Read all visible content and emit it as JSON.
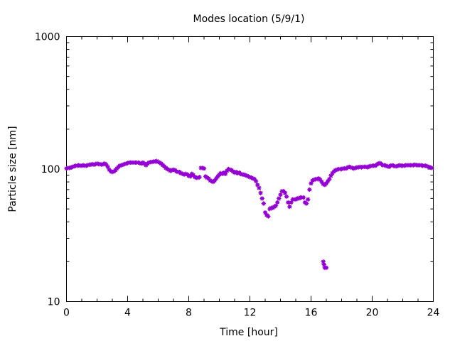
{
  "chart_data": {
    "type": "scatter",
    "title": "Modes location (5/9/1)",
    "xlabel": "Time [hour]",
    "ylabel": "Particle size [nm]",
    "xlim": [
      0,
      24
    ],
    "ylim": [
      10,
      1000
    ],
    "yscale": "log",
    "xticks": [
      0,
      4,
      8,
      12,
      16,
      20,
      24
    ],
    "yticks": [
      10,
      100,
      1000
    ],
    "grid": false,
    "marker_color": "#9400d3",
    "series": [
      {
        "values": [
          [
            0.0,
            101
          ],
          [
            0.1,
            102
          ],
          [
            0.2,
            102
          ],
          [
            0.3,
            103
          ],
          [
            0.4,
            104
          ],
          [
            0.5,
            105
          ],
          [
            0.6,
            106
          ],
          [
            0.7,
            106
          ],
          [
            0.8,
            107
          ],
          [
            0.9,
            106
          ],
          [
            1.0,
            106
          ],
          [
            1.1,
            107
          ],
          [
            1.2,
            106
          ],
          [
            1.3,
            106
          ],
          [
            1.4,
            107
          ],
          [
            1.5,
            108
          ],
          [
            1.6,
            108
          ],
          [
            1.7,
            109
          ],
          [
            1.8,
            108
          ],
          [
            1.9,
            109
          ],
          [
            2.0,
            110
          ],
          [
            2.1,
            109
          ],
          [
            2.2,
            109
          ],
          [
            2.3,
            108
          ],
          [
            2.4,
            109
          ],
          [
            2.5,
            110
          ],
          [
            2.6,
            108
          ],
          [
            2.7,
            104
          ],
          [
            2.8,
            99
          ],
          [
            2.9,
            96
          ],
          [
            3.0,
            95
          ],
          [
            3.1,
            96
          ],
          [
            3.2,
            98
          ],
          [
            3.3,
            101
          ],
          [
            3.4,
            104
          ],
          [
            3.5,
            106
          ],
          [
            3.6,
            107
          ],
          [
            3.7,
            108
          ],
          [
            3.8,
            109
          ],
          [
            3.9,
            110
          ],
          [
            4.0,
            111
          ],
          [
            4.1,
            112
          ],
          [
            4.2,
            112
          ],
          [
            4.3,
            112
          ],
          [
            4.4,
            112
          ],
          [
            4.5,
            112
          ],
          [
            4.6,
            112
          ],
          [
            4.7,
            112
          ],
          [
            4.8,
            111
          ],
          [
            4.9,
            110
          ],
          [
            5.0,
            112
          ],
          [
            5.1,
            110
          ],
          [
            5.2,
            107
          ],
          [
            5.3,
            110
          ],
          [
            5.4,
            112
          ],
          [
            5.5,
            113
          ],
          [
            5.6,
            113
          ],
          [
            5.7,
            114
          ],
          [
            5.8,
            114
          ],
          [
            5.9,
            115
          ],
          [
            6.0,
            113
          ],
          [
            6.1,
            112
          ],
          [
            6.2,
            110
          ],
          [
            6.3,
            107
          ],
          [
            6.4,
            105
          ],
          [
            6.5,
            102
          ],
          [
            6.6,
            100
          ],
          [
            6.7,
            99
          ],
          [
            6.8,
            97
          ],
          [
            6.9,
            98
          ],
          [
            7.0,
            99
          ],
          [
            7.1,
            98
          ],
          [
            7.2,
            96
          ],
          [
            7.3,
            95
          ],
          [
            7.4,
            95
          ],
          [
            7.5,
            93
          ],
          [
            7.6,
            92
          ],
          [
            7.7,
            91
          ],
          [
            7.8,
            92
          ],
          [
            7.9,
            91
          ],
          [
            8.0,
            89
          ],
          [
            8.1,
            88
          ],
          [
            8.2,
            92
          ],
          [
            8.3,
            90
          ],
          [
            8.4,
            87
          ],
          [
            8.5,
            86
          ],
          [
            8.6,
            86
          ],
          [
            8.7,
            87
          ],
          [
            8.8,
            102
          ],
          [
            8.9,
            102
          ],
          [
            9.0,
            101
          ],
          [
            9.1,
            88
          ],
          [
            9.2,
            86
          ],
          [
            9.3,
            85
          ],
          [
            9.4,
            82
          ],
          [
            9.5,
            81
          ],
          [
            9.6,
            80
          ],
          [
            9.7,
            82
          ],
          [
            9.8,
            85
          ],
          [
            9.9,
            88
          ],
          [
            10.0,
            91
          ],
          [
            10.1,
            93
          ],
          [
            10.2,
            92
          ],
          [
            10.3,
            94
          ],
          [
            10.4,
            92
          ],
          [
            10.5,
            97
          ],
          [
            10.6,
            100
          ],
          [
            10.7,
            99
          ],
          [
            10.8,
            98
          ],
          [
            10.9,
            96
          ],
          [
            11.0,
            94
          ],
          [
            11.1,
            95
          ],
          [
            11.2,
            93
          ],
          [
            11.3,
            94
          ],
          [
            11.4,
            92
          ],
          [
            11.5,
            91
          ],
          [
            11.6,
            91
          ],
          [
            11.7,
            90
          ],
          [
            11.8,
            89
          ],
          [
            11.9,
            88
          ],
          [
            12.0,
            87
          ],
          [
            12.1,
            86
          ],
          [
            12.2,
            85
          ],
          [
            12.3,
            84
          ],
          [
            12.4,
            81
          ],
          [
            12.5,
            76
          ],
          [
            12.6,
            72
          ],
          [
            12.7,
            66
          ],
          [
            12.8,
            60
          ],
          [
            12.9,
            55
          ],
          [
            13.0,
            47
          ],
          [
            13.1,
            45
          ],
          [
            13.2,
            44
          ],
          [
            13.3,
            50
          ],
          [
            13.4,
            51
          ],
          [
            13.5,
            51
          ],
          [
            13.6,
            52
          ],
          [
            13.7,
            53
          ],
          [
            13.8,
            56
          ],
          [
            13.9,
            60
          ],
          [
            14.0,
            64
          ],
          [
            14.1,
            68
          ],
          [
            14.2,
            68
          ],
          [
            14.3,
            66
          ],
          [
            14.4,
            62
          ],
          [
            14.5,
            56
          ],
          [
            14.6,
            52
          ],
          [
            14.7,
            56
          ],
          [
            14.8,
            59
          ],
          [
            14.9,
            59
          ],
          [
            15.0,
            59
          ],
          [
            15.1,
            60
          ],
          [
            15.2,
            60
          ],
          [
            15.3,
            61
          ],
          [
            15.4,
            61
          ],
          [
            15.5,
            61
          ],
          [
            15.6,
            56
          ],
          [
            15.7,
            55
          ],
          [
            15.8,
            59
          ],
          [
            15.9,
            70
          ],
          [
            16.0,
            78
          ],
          [
            16.1,
            82
          ],
          [
            16.2,
            83
          ],
          [
            16.3,
            84
          ],
          [
            16.4,
            84
          ],
          [
            16.5,
            85
          ],
          [
            16.6,
            83
          ],
          [
            16.7,
            80
          ],
          [
            16.8,
            77
          ],
          [
            16.9,
            76
          ],
          [
            17.0,
            78
          ],
          [
            17.1,
            81
          ],
          [
            17.2,
            84
          ],
          [
            17.3,
            89
          ],
          [
            17.4,
            93
          ],
          [
            17.5,
            96
          ],
          [
            17.6,
            98
          ],
          [
            17.7,
            99
          ],
          [
            17.8,
            100
          ],
          [
            17.9,
            100
          ],
          [
            18.0,
            100
          ],
          [
            18.1,
            101
          ],
          [
            18.2,
            101
          ],
          [
            18.3,
            101
          ],
          [
            18.4,
            103
          ],
          [
            18.5,
            104
          ],
          [
            18.6,
            103
          ],
          [
            18.7,
            102
          ],
          [
            18.8,
            101
          ],
          [
            18.9,
            102
          ],
          [
            19.0,
            103
          ],
          [
            19.1,
            103
          ],
          [
            19.2,
            104
          ],
          [
            19.3,
            103
          ],
          [
            19.4,
            104
          ],
          [
            19.5,
            104
          ],
          [
            19.6,
            104
          ],
          [
            19.7,
            103
          ],
          [
            19.8,
            105
          ],
          [
            19.9,
            105
          ],
          [
            20.0,
            106
          ],
          [
            20.1,
            106
          ],
          [
            20.2,
            106
          ],
          [
            20.3,
            108
          ],
          [
            20.4,
            110
          ],
          [
            20.5,
            111
          ],
          [
            20.6,
            109
          ],
          [
            20.7,
            107
          ],
          [
            20.8,
            107
          ],
          [
            20.9,
            106
          ],
          [
            21.0,
            105
          ],
          [
            21.1,
            104
          ],
          [
            21.2,
            106
          ],
          [
            21.3,
            107
          ],
          [
            21.4,
            106
          ],
          [
            21.5,
            105
          ],
          [
            21.6,
            105
          ],
          [
            21.7,
            106
          ],
          [
            21.8,
            107
          ],
          [
            21.9,
            106
          ],
          [
            22.0,
            106
          ],
          [
            22.1,
            106
          ],
          [
            22.2,
            107
          ],
          [
            22.3,
            107
          ],
          [
            22.4,
            107
          ],
          [
            22.5,
            107
          ],
          [
            22.6,
            107
          ],
          [
            22.7,
            107
          ],
          [
            22.8,
            108
          ],
          [
            22.9,
            107
          ],
          [
            23.0,
            107
          ],
          [
            23.1,
            107
          ],
          [
            23.2,
            107
          ],
          [
            23.3,
            106
          ],
          [
            23.4,
            106
          ],
          [
            23.5,
            106
          ],
          [
            23.6,
            105
          ],
          [
            23.7,
            104
          ],
          [
            23.8,
            103
          ],
          [
            23.9,
            102
          ],
          [
            16.8,
            20
          ],
          [
            16.9,
            18
          ],
          [
            17.0,
            18
          ],
          [
            16.85,
            19
          ]
        ]
      }
    ]
  }
}
